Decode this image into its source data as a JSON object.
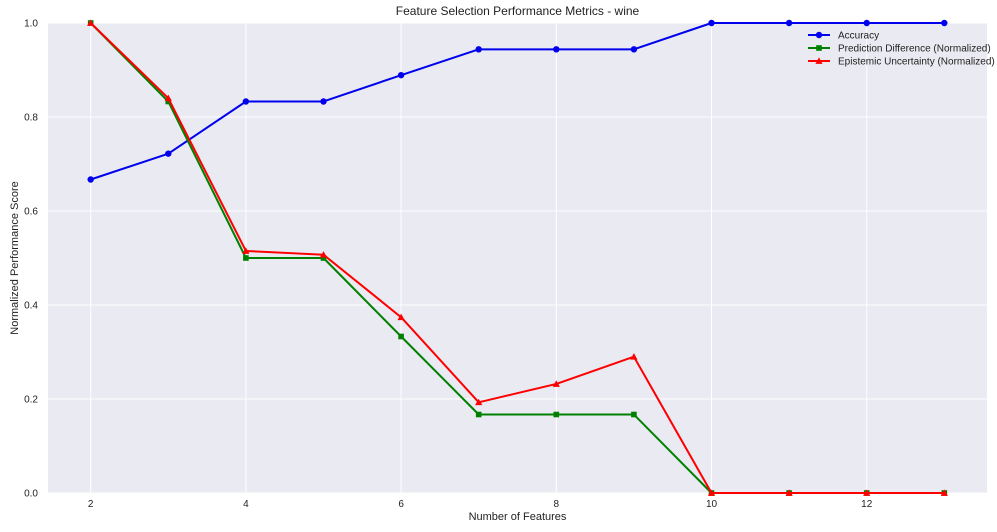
{
  "chart_data": {
    "type": "line",
    "title": "Feature Selection Performance Metrics - wine",
    "xlabel": "Number of Features",
    "ylabel": "Normalized Performance Score",
    "xlim": [
      1.45,
      13.55
    ],
    "ylim": [
      0.0,
      1.0
    ],
    "xticks": [
      2,
      4,
      6,
      8,
      10,
      12
    ],
    "yticks": [
      0.0,
      0.2,
      0.4,
      0.6,
      0.8,
      1.0
    ],
    "xtick_labels": [
      "2",
      "4",
      "6",
      "8",
      "10",
      "12"
    ],
    "ytick_labels": [
      "0.0",
      "0.2",
      "0.4",
      "0.6",
      "0.8",
      "1.0"
    ],
    "grid": true,
    "legend_position": "top-right",
    "background_color": "#eaeaf2",
    "x": [
      2,
      3,
      4,
      5,
      6,
      7,
      8,
      9,
      10,
      11,
      12,
      13
    ],
    "series": [
      {
        "name": "Accuracy",
        "color": "#0000ee",
        "marker": "circle",
        "values": [
          0.667,
          0.722,
          0.833,
          0.833,
          0.889,
          0.944,
          0.944,
          0.944,
          1.0,
          1.0,
          1.0,
          1.0
        ]
      },
      {
        "name": "Prediction Difference (Normalized)",
        "color": "#008000",
        "marker": "square",
        "values": [
          1.0,
          0.833,
          0.5,
          0.5,
          0.333,
          0.167,
          0.167,
          0.167,
          0.0,
          0.0,
          0.0,
          0.0
        ]
      },
      {
        "name": "Epistemic Uncertainty (Normalized)",
        "color": "#ff0000",
        "marker": "triangle",
        "values": [
          1.0,
          0.84,
          0.515,
          0.507,
          0.374,
          0.193,
          0.232,
          0.29,
          0.0,
          0.0,
          0.0,
          0.0
        ]
      }
    ]
  }
}
